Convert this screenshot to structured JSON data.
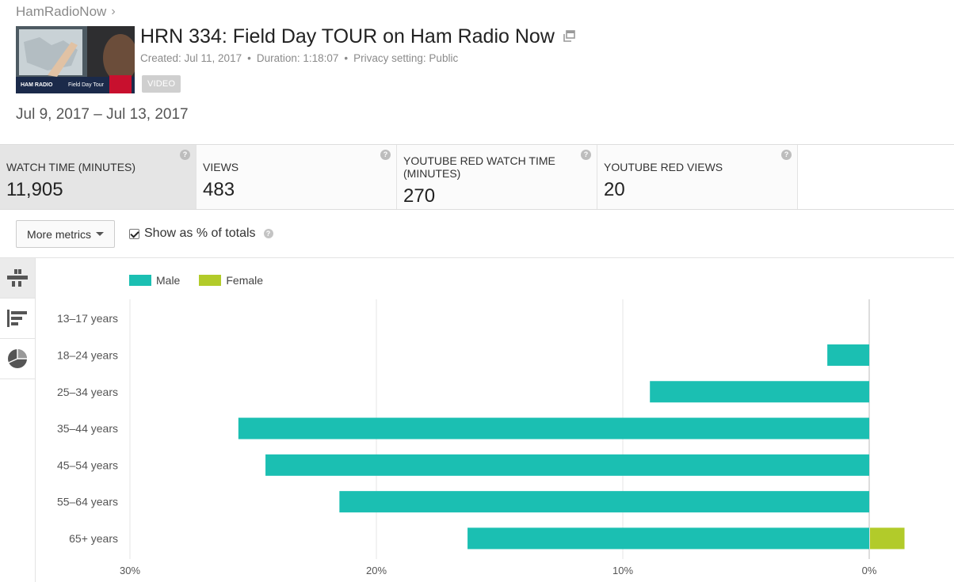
{
  "breadcrumb": {
    "channel": "HamRadioNow",
    "chevron": "›"
  },
  "video": {
    "title": "HRN 334: Field Day TOUR on Ham Radio Now",
    "created": "Created: Jul 11, 2017",
    "duration": "Duration: 1:18:07",
    "privacy": "Privacy setting: Public",
    "badge": "VIDEO",
    "thumb_text_left": "HAM RADIO",
    "thumb_text_right": "Field Day Tour"
  },
  "date_range": "Jul 9, 2017 – Jul 13, 2017",
  "metrics": [
    {
      "label": "WATCH TIME (MINUTES)",
      "value": "11,905",
      "active": true
    },
    {
      "label": "VIEWS",
      "value": "483",
      "active": false
    },
    {
      "label": "YOUTUBE RED WATCH TIME (MINUTES)",
      "value": "270",
      "active": false
    },
    {
      "label": "YOUTUBE RED VIEWS",
      "value": "20",
      "active": false
    }
  ],
  "toolbar": {
    "more_metrics_label": "More metrics",
    "show_pct_label": "Show as % of totals",
    "show_pct_checked": true
  },
  "sidebar": {
    "icons": [
      "bar-chart-icon",
      "list-chart-icon",
      "pie-chart-icon"
    ]
  },
  "colors": {
    "male": "#1bbfb2",
    "female": "#b2cb2a",
    "grid": "#e6e6e6"
  },
  "chart_data": {
    "type": "bar",
    "orientation": "horizontal",
    "categories": [
      "13–17 years",
      "18–24 years",
      "25–34 years",
      "35–44 years",
      "45–54 years",
      "55–64 years",
      "65+ years"
    ],
    "series": [
      {
        "name": "Male",
        "values": [
          0,
          1.7,
          8.9,
          25.6,
          24.5,
          21.5,
          16.3
        ]
      },
      {
        "name": "Female",
        "values": [
          0,
          0,
          0,
          0,
          0,
          0,
          1.4
        ]
      }
    ],
    "xlim": [
      30,
      0
    ],
    "xticks": [
      30,
      20,
      10,
      0
    ],
    "xtick_labels": [
      "30%",
      "20%",
      "10%",
      "0%"
    ],
    "grid": true,
    "legend_position": "top-left"
  }
}
